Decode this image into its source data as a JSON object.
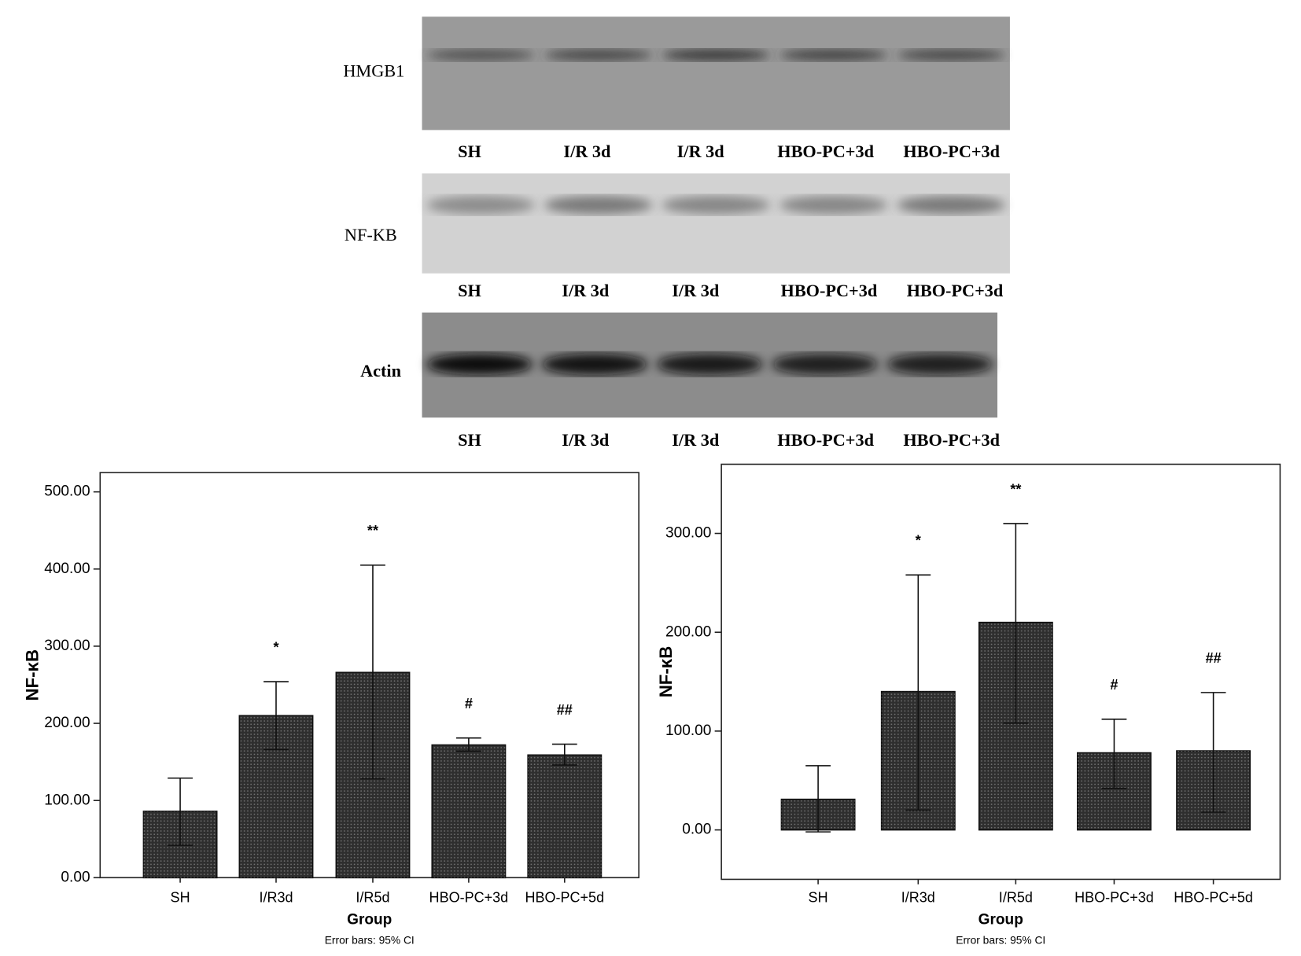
{
  "blots": [
    {
      "label": "HMGB1",
      "lanes": [
        "SH",
        "I/R 3d",
        "I/R 3d",
        "HBO-PC+3d",
        "HBO-PC+3d"
      ]
    },
    {
      "label": "NF-KB",
      "lanes": [
        "SH",
        "I/R 3d",
        "I/R 3d",
        "HBO-PC+3d",
        "HBO-PC+3d"
      ]
    },
    {
      "label": "Actin",
      "lanes": [
        "SH",
        "I/R 3d",
        "I/R 3d",
        "HBO-PC+3d",
        "HBO-PC+3d"
      ]
    }
  ],
  "chart_data": [
    {
      "type": "bar",
      "y_label": "NF-κB",
      "x_label": "Group",
      "note": "Error bars: 95% CI",
      "categories": [
        "SH",
        "I/R3d",
        "I/R5d",
        "HBO-PC+3d",
        "HBO-PC+5d"
      ],
      "values": [
        86,
        210,
        266,
        172,
        159
      ],
      "ci_low": [
        42,
        166,
        128,
        164,
        146
      ],
      "ci_high": [
        129,
        254,
        405,
        181,
        173
      ],
      "annotations": [
        null,
        "*",
        "**",
        "#",
        "##"
      ],
      "color": "#2e2e2e",
      "ylim": [
        0,
        525
      ],
      "yticks": [
        {
          "value": 0,
          "label": "0.00"
        },
        {
          "value": 100,
          "label": "100.00"
        },
        {
          "value": 200,
          "label": "200.00"
        },
        {
          "value": 300,
          "label": "300.00"
        },
        {
          "value": 400,
          "label": "400.00"
        },
        {
          "value": 500,
          "label": "500.00"
        }
      ]
    },
    {
      "type": "bar",
      "y_label": "NF-κB",
      "x_label": "Group",
      "note": "Error bars: 95% CI",
      "categories": [
        "SH",
        "I/R3d",
        "I/R5d",
        "HBO-PC+3d",
        "HBO-PC+5d"
      ],
      "values": [
        31,
        140,
        210,
        78,
        80
      ],
      "ci_low": [
        -2,
        20,
        108,
        42,
        18
      ],
      "ci_high": [
        65,
        258,
        310,
        112,
        139
      ],
      "annotations": [
        null,
        "*",
        "**",
        "#",
        "##"
      ],
      "color": "#2e2e2e",
      "ylim": [
        -50,
        370
      ],
      "yticks": [
        {
          "value": 0,
          "label": "0.00"
        },
        {
          "value": 100,
          "label": "100.00"
        },
        {
          "value": 200,
          "label": "200.00"
        },
        {
          "value": 300,
          "label": "300.00"
        }
      ]
    }
  ]
}
